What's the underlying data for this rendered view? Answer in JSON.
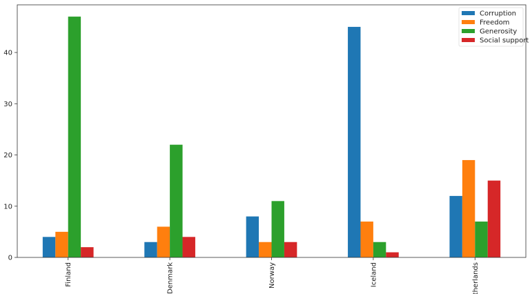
{
  "chart_data": {
    "type": "bar",
    "title": "",
    "xlabel": "",
    "ylabel": "",
    "categories": [
      "Finland",
      "Denmark",
      "Norway",
      "Iceland",
      "Netherlands"
    ],
    "series": [
      {
        "name": "Corruption",
        "color": "#1f77b4",
        "values": [
          4,
          3,
          8,
          45,
          12
        ]
      },
      {
        "name": "Freedom",
        "color": "#ff7f0e",
        "values": [
          5,
          6,
          3,
          7,
          19
        ]
      },
      {
        "name": "Generosity",
        "color": "#2ca02c",
        "values": [
          47,
          22,
          11,
          3,
          7
        ]
      },
      {
        "name": "Social support",
        "color": "#d62728",
        "values": [
          2,
          4,
          3,
          1,
          15
        ]
      }
    ],
    "ylim": [
      0,
      49.3
    ],
    "yticks": [
      0,
      10,
      20,
      30,
      40
    ],
    "grid": false,
    "legend": "top-right"
  }
}
